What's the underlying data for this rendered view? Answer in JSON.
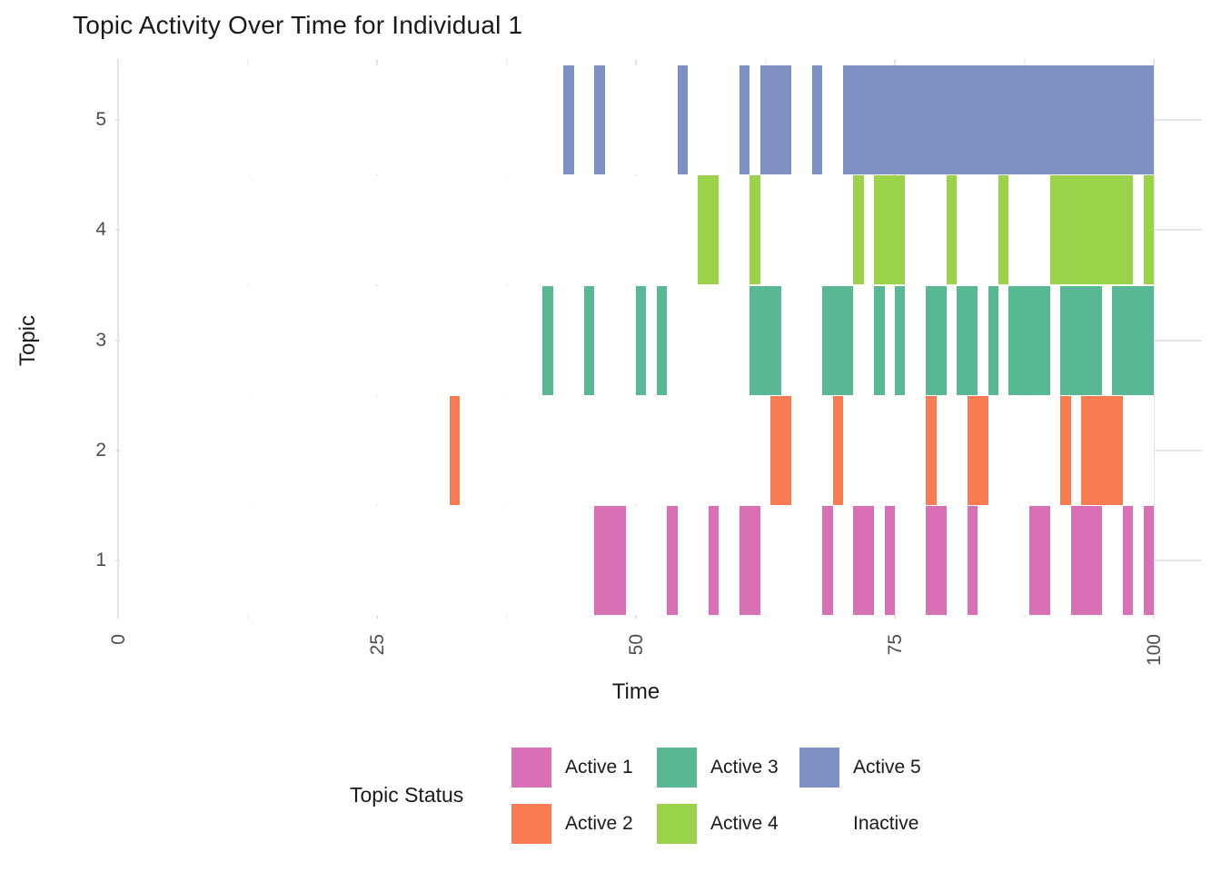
{
  "title": "Topic Activity Over Time for Individual 1",
  "axes": {
    "x_label": "Time",
    "y_label": "Topic",
    "x_ticks": [
      "0",
      "25",
      "50",
      "75",
      "100"
    ],
    "y_ticks": [
      "1",
      "2",
      "3",
      "4",
      "5"
    ]
  },
  "legend": {
    "title": "Topic Status",
    "entries": [
      {
        "label": "Active 1",
        "color": "#d970b5"
      },
      {
        "label": "Active 2",
        "color": "#f87b51"
      },
      {
        "label": "Active 3",
        "color": "#57b893"
      },
      {
        "label": "Active 4",
        "color": "#9ad24a"
      },
      {
        "label": "Active 5",
        "color": "#7e90c2"
      },
      {
        "label": "Inactive",
        "color": "#ffffff"
      }
    ]
  },
  "colors": {
    "background": "#ffffff",
    "grid_major": "#e5e5e5",
    "grid_minor": "#f1f1f1",
    "tick_text": "#4d4d4d",
    "text": "#1a1a1a"
  },
  "chart_data": {
    "type": "bar",
    "subtype": "gantt-timeline",
    "title": "Topic Activity Over Time for Individual 1",
    "xlabel": "Time",
    "ylabel": "Topic",
    "xlim": [
      0,
      100
    ],
    "ylim": [
      0.5,
      5.5
    ],
    "x_major_ticks": [
      0,
      25,
      50,
      75,
      100
    ],
    "x_minor_ticks": [
      12.5,
      37.5,
      62.5,
      87.5
    ],
    "y_major_ticks": [
      1,
      2,
      3,
      4,
      5
    ],
    "grid": true,
    "legend_position": "bottom",
    "inactive_fill": "#ffffff",
    "series": [
      {
        "name": "Active 1",
        "topic": 1,
        "color": "#d970b5",
        "intervals": [
          [
            46,
            49
          ],
          [
            53,
            54
          ],
          [
            57,
            58
          ],
          [
            60,
            62
          ],
          [
            68,
            69
          ],
          [
            71,
            73
          ],
          [
            74,
            75
          ],
          [
            78,
            80
          ],
          [
            82,
            83
          ],
          [
            88,
            90
          ],
          [
            92,
            95
          ],
          [
            97,
            98
          ],
          [
            99,
            100
          ]
        ]
      },
      {
        "name": "Active 2",
        "topic": 2,
        "color": "#f87b51",
        "intervals": [
          [
            32,
            33
          ],
          [
            63,
            65
          ],
          [
            69,
            70
          ],
          [
            78,
            79
          ],
          [
            82,
            84
          ],
          [
            91,
            92
          ],
          [
            93,
            97
          ]
        ]
      },
      {
        "name": "Active 3",
        "topic": 3,
        "color": "#57b893",
        "intervals": [
          [
            41,
            42
          ],
          [
            45,
            46
          ],
          [
            50,
            51
          ],
          [
            52,
            53
          ],
          [
            61,
            64
          ],
          [
            68,
            71
          ],
          [
            73,
            74
          ],
          [
            75,
            76
          ],
          [
            78,
            80
          ],
          [
            81,
            83
          ],
          [
            84,
            85
          ],
          [
            86,
            90
          ],
          [
            91,
            95
          ],
          [
            96,
            100
          ]
        ]
      },
      {
        "name": "Active 4",
        "topic": 4,
        "color": "#9ad24a",
        "intervals": [
          [
            56,
            58
          ],
          [
            61,
            62
          ],
          [
            71,
            72
          ],
          [
            73,
            76
          ],
          [
            80,
            81
          ],
          [
            85,
            86
          ],
          [
            90,
            98
          ],
          [
            99,
            100
          ]
        ]
      },
      {
        "name": "Active 5",
        "topic": 5,
        "color": "#7e90c2",
        "intervals": [
          [
            43,
            44
          ],
          [
            46,
            47
          ],
          [
            54,
            55
          ],
          [
            60,
            61
          ],
          [
            62,
            65
          ],
          [
            67,
            68
          ],
          [
            70,
            100
          ]
        ]
      }
    ]
  }
}
